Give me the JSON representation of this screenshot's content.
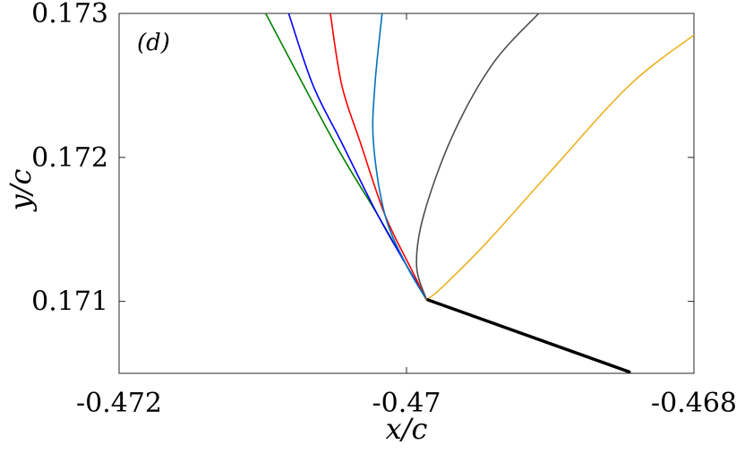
{
  "chart_data": {
    "type": "line",
    "panel_label": "(d)",
    "xlabel": "x/c",
    "ylabel": "y/c",
    "xlim": [
      -0.472,
      -0.468
    ],
    "ylim": [
      0.1705,
      0.173
    ],
    "xticks": [
      -0.472,
      -0.47,
      -0.468
    ],
    "xtick_labels": [
      "-0.472",
      "-0.47",
      "-0.468"
    ],
    "yticks": [
      0.171,
      0.172,
      0.173
    ],
    "ytick_labels": [
      "0.171",
      "0.172",
      "0.173"
    ],
    "grid": false,
    "series": [
      {
        "color": "#008000",
        "x": [
          -0.47098,
          -0.4705,
          -0.4702,
          -0.47,
          -0.46986
        ],
        "y": [
          0.173,
          0.1721,
          0.1716,
          0.17125,
          0.17101
        ]
      },
      {
        "color": "#0000ff",
        "x": [
          -0.47082,
          -0.47065,
          -0.47045,
          -0.4702,
          -0.47,
          -0.46986
        ],
        "y": [
          0.173,
          0.1725,
          0.1721,
          0.1716,
          0.17125,
          0.17101
        ]
      },
      {
        "color": "#ff0000",
        "x": [
          -0.47053,
          -0.47045,
          -0.47032,
          -0.47015,
          -0.46998,
          -0.46986
        ],
        "y": [
          0.173,
          0.1725,
          0.1721,
          0.1716,
          0.17125,
          0.17101
        ]
      },
      {
        "color": "#0072bd",
        "x": [
          -0.47017,
          -0.47022,
          -0.47023,
          -0.47015,
          -0.47,
          -0.46986
        ],
        "y": [
          0.173,
          0.1725,
          0.1721,
          0.1716,
          0.17125,
          0.17101
        ]
      },
      {
        "color": "#4d4d4d",
        "x": [
          -0.46908,
          -0.4694,
          -0.46968,
          -0.46988,
          -0.46993,
          -0.46986
        ],
        "y": [
          0.173,
          0.17265,
          0.17215,
          0.1716,
          0.17125,
          0.17101
        ]
      },
      {
        "color": "#edb120",
        "x": [
          -0.468,
          -0.46845,
          -0.469,
          -0.46945,
          -0.46975,
          -0.46986
        ],
        "y": [
          0.17285,
          0.1725,
          0.1719,
          0.1714,
          0.1711,
          0.17101
        ]
      },
      {
        "color": "#000000",
        "x": [
          -0.46985,
          -0.46845
        ],
        "y": [
          0.17101,
          0.17051
        ]
      }
    ]
  }
}
